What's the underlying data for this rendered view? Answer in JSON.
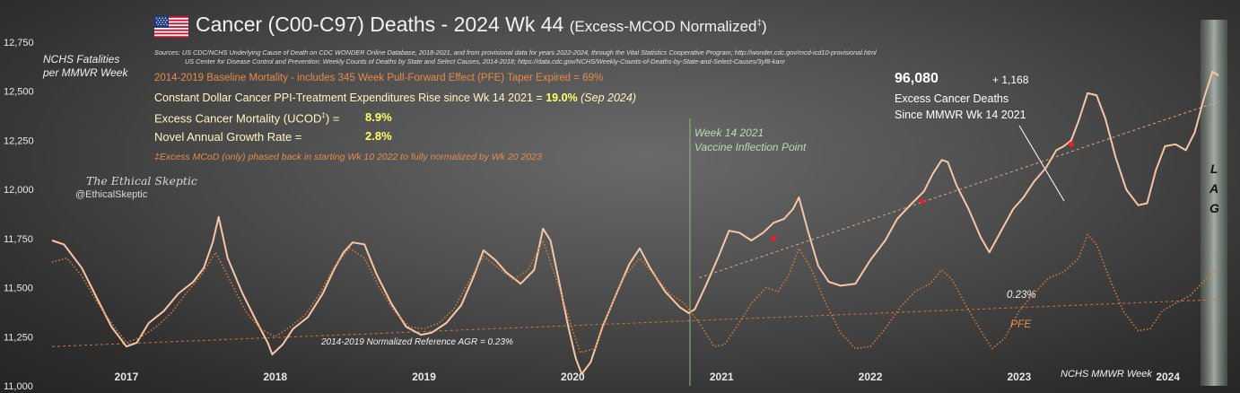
{
  "chart_data": {
    "type": "line",
    "title": "Cancer (C00-C97) Deaths - 2024 Wk 44",
    "title_suffix": "(Excess-MCOD  Normalized",
    "title_dagger": "‡",
    "title_close": ")",
    "sources_line1": "Sources:  US CDC/NCHS Underlying  Cause of Death on CDC WONDER Online Database, 2018-2021, and from provisional data for years 2022-2024, through the Vital Statistics Cooperative Program; http://wonder.cdc.gov/mcd-icd10-provisional.html",
    "sources_line2": "US Center for Disease Control and Prevention: Weekly  Counts of Deaths by State and Select Causes, 2014-2018; https://data.cdc.gov/NCHS/Weekly-Counts-of-Deaths-by-State-and-Select-Causes/3yf8-kanr",
    "ylabel_line1": "NCHS Fatalities",
    "ylabel_line2": "per MMWR Week",
    "xlabel": "NCHS MMWR Week",
    "ylim": [
      11000,
      12750
    ],
    "y_ticks": [
      "11,000",
      "11,250",
      "11,500",
      "11,750",
      "12,000",
      "12,250",
      "12,500",
      "12,750"
    ],
    "y_tick_values": [
      11000,
      11250,
      11500,
      11750,
      12000,
      12250,
      12500,
      12750
    ],
    "x_tick_labels": [
      "2017",
      "2018",
      "2019",
      "2020",
      "2021",
      "2022",
      "2023",
      "2024"
    ],
    "grid": false,
    "series": [
      {
        "name": "",
        "style": "solid",
        "color": "#f6c7a6",
        "points": [
          [
            2016.5,
            11740
          ],
          [
            2016.58,
            11720
          ],
          [
            2016.7,
            11600
          ],
          [
            2016.8,
            11450
          ],
          [
            2016.9,
            11300
          ],
          [
            2017.0,
            11200
          ],
          [
            2017.07,
            11220
          ],
          [
            2017.15,
            11320
          ],
          [
            2017.25,
            11380
          ],
          [
            2017.35,
            11470
          ],
          [
            2017.45,
            11530
          ],
          [
            2017.52,
            11600
          ],
          [
            2017.58,
            11730
          ],
          [
            2017.62,
            11860
          ],
          [
            2017.68,
            11650
          ],
          [
            2017.78,
            11470
          ],
          [
            2017.88,
            11320
          ],
          [
            2017.95,
            11220
          ],
          [
            2017.98,
            11160
          ],
          [
            2018.05,
            11210
          ],
          [
            2018.12,
            11290
          ],
          [
            2018.22,
            11350
          ],
          [
            2018.32,
            11470
          ],
          [
            2018.4,
            11600
          ],
          [
            2018.46,
            11680
          ],
          [
            2018.52,
            11730
          ],
          [
            2018.6,
            11720
          ],
          [
            2018.68,
            11570
          ],
          [
            2018.78,
            11420
          ],
          [
            2018.88,
            11300
          ],
          [
            2018.98,
            11260
          ],
          [
            2019.05,
            11270
          ],
          [
            2019.15,
            11320
          ],
          [
            2019.25,
            11410
          ],
          [
            2019.33,
            11550
          ],
          [
            2019.4,
            11690
          ],
          [
            2019.48,
            11640
          ],
          [
            2019.55,
            11580
          ],
          [
            2019.65,
            11520
          ],
          [
            2019.74,
            11590
          ],
          [
            2019.8,
            11800
          ],
          [
            2019.85,
            11740
          ],
          [
            2019.9,
            11560
          ],
          [
            2019.97,
            11300
          ],
          [
            2020.02,
            11140
          ],
          [
            2020.06,
            11060
          ],
          [
            2020.12,
            11120
          ],
          [
            2020.2,
            11300
          ],
          [
            2020.3,
            11480
          ],
          [
            2020.38,
            11620
          ],
          [
            2020.45,
            11700
          ],
          [
            2020.52,
            11600
          ],
          [
            2020.62,
            11480
          ],
          [
            2020.72,
            11400
          ],
          [
            2020.78,
            11370
          ],
          [
            2020.82,
            11390
          ],
          [
            2020.9,
            11520
          ],
          [
            2020.98,
            11660
          ],
          [
            2021.05,
            11790
          ],
          [
            2021.12,
            11780
          ],
          [
            2021.2,
            11740
          ],
          [
            2021.28,
            11780
          ],
          [
            2021.35,
            11830
          ],
          [
            2021.42,
            11850
          ],
          [
            2021.48,
            11900
          ],
          [
            2021.52,
            11960
          ],
          [
            2021.58,
            11790
          ],
          [
            2021.65,
            11610
          ],
          [
            2021.72,
            11530
          ],
          [
            2021.8,
            11510
          ],
          [
            2021.9,
            11520
          ],
          [
            2022.0,
            11640
          ],
          [
            2022.1,
            11740
          ],
          [
            2022.18,
            11850
          ],
          [
            2022.28,
            11930
          ],
          [
            2022.36,
            11990
          ],
          [
            2022.42,
            12080
          ],
          [
            2022.48,
            12150
          ],
          [
            2022.52,
            12140
          ],
          [
            2022.58,
            12020
          ],
          [
            2022.66,
            11900
          ],
          [
            2022.74,
            11760
          ],
          [
            2022.8,
            11680
          ],
          [
            2022.88,
            11790
          ],
          [
            2022.96,
            11900
          ],
          [
            2023.03,
            11960
          ],
          [
            2023.1,
            12040
          ],
          [
            2023.18,
            12110
          ],
          [
            2023.25,
            12200
          ],
          [
            2023.3,
            12220
          ],
          [
            2023.35,
            12250
          ],
          [
            2023.4,
            12350
          ],
          [
            2023.46,
            12490
          ],
          [
            2023.52,
            12480
          ],
          [
            2023.58,
            12360
          ],
          [
            2023.65,
            12160
          ],
          [
            2023.72,
            12000
          ],
          [
            2023.8,
            11920
          ],
          [
            2023.86,
            11930
          ],
          [
            2023.92,
            12100
          ],
          [
            2023.98,
            12220
          ],
          [
            2024.05,
            12230
          ],
          [
            2024.12,
            12200
          ],
          [
            2024.18,
            12290
          ],
          [
            2024.24,
            12460
          ],
          [
            2024.3,
            12600
          ],
          [
            2024.34,
            12580
          ]
        ]
      },
      {
        "name": "",
        "style": "dotted",
        "color": "#d07a3a",
        "points": [
          [
            2016.5,
            11630
          ],
          [
            2016.6,
            11650
          ],
          [
            2016.7,
            11560
          ],
          [
            2016.8,
            11430
          ],
          [
            2016.9,
            11320
          ],
          [
            2017.0,
            11220
          ],
          [
            2017.1,
            11250
          ],
          [
            2017.2,
            11300
          ],
          [
            2017.3,
            11370
          ],
          [
            2017.4,
            11470
          ],
          [
            2017.5,
            11560
          ],
          [
            2017.6,
            11680
          ],
          [
            2017.7,
            11530
          ],
          [
            2017.8,
            11380
          ],
          [
            2017.9,
            11290
          ],
          [
            2018.0,
            11250
          ],
          [
            2018.1,
            11300
          ],
          [
            2018.2,
            11360
          ],
          [
            2018.3,
            11470
          ],
          [
            2018.4,
            11610
          ],
          [
            2018.5,
            11700
          ],
          [
            2018.6,
            11650
          ],
          [
            2018.7,
            11500
          ],
          [
            2018.8,
            11380
          ],
          [
            2018.9,
            11300
          ],
          [
            2019.0,
            11290
          ],
          [
            2019.1,
            11320
          ],
          [
            2019.2,
            11390
          ],
          [
            2019.3,
            11530
          ],
          [
            2019.4,
            11660
          ],
          [
            2019.5,
            11600
          ],
          [
            2019.6,
            11540
          ],
          [
            2019.7,
            11590
          ],
          [
            2019.8,
            11740
          ],
          [
            2019.9,
            11520
          ],
          [
            2020.0,
            11280
          ],
          [
            2020.05,
            11170
          ],
          [
            2020.15,
            11190
          ],
          [
            2020.25,
            11390
          ],
          [
            2020.35,
            11560
          ],
          [
            2020.45,
            11650
          ],
          [
            2020.55,
            11560
          ],
          [
            2020.65,
            11470
          ],
          [
            2020.75,
            11420
          ],
          [
            2020.85,
            11320
          ],
          [
            2020.95,
            11200
          ],
          [
            2021.02,
            11210
          ],
          [
            2021.1,
            11300
          ],
          [
            2021.2,
            11420
          ],
          [
            2021.3,
            11500
          ],
          [
            2021.38,
            11480
          ],
          [
            2021.45,
            11560
          ],
          [
            2021.52,
            11700
          ],
          [
            2021.6,
            11600
          ],
          [
            2021.7,
            11420
          ],
          [
            2021.8,
            11270
          ],
          [
            2021.9,
            11190
          ],
          [
            2022.0,
            11200
          ],
          [
            2022.1,
            11290
          ],
          [
            2022.2,
            11400
          ],
          [
            2022.3,
            11480
          ],
          [
            2022.4,
            11520
          ],
          [
            2022.48,
            11590
          ],
          [
            2022.55,
            11540
          ],
          [
            2022.65,
            11400
          ],
          [
            2022.75,
            11270
          ],
          [
            2022.82,
            11190
          ],
          [
            2022.9,
            11240
          ],
          [
            2023.0,
            11380
          ],
          [
            2023.1,
            11470
          ],
          [
            2023.2,
            11550
          ],
          [
            2023.3,
            11580
          ],
          [
            2023.4,
            11650
          ],
          [
            2023.46,
            11770
          ],
          [
            2023.52,
            11720
          ],
          [
            2023.6,
            11560
          ],
          [
            2023.7,
            11380
          ],
          [
            2023.8,
            11280
          ],
          [
            2023.88,
            11290
          ],
          [
            2023.96,
            11380
          ],
          [
            2024.05,
            11420
          ],
          [
            2024.15,
            11460
          ],
          [
            2024.25,
            11540
          ],
          [
            2024.33,
            11600
          ]
        ]
      }
    ],
    "reference_lines": [
      {
        "from": [
          2016.5,
          11200
        ],
        "to": [
          2024.35,
          11440
        ],
        "color": "#c9763c"
      },
      {
        "from": [
          2020.85,
          11550
        ],
        "to": [
          2024.35,
          12450
        ],
        "color": "#e0a882"
      }
    ],
    "markers": [
      [
        2021.35,
        11750
      ],
      [
        2022.35,
        11940
      ],
      [
        2023.35,
        12230
      ]
    ],
    "annotations": {
      "baseline": "2014-2019 Baseline Mortality - includes 345 Week Pull-Forward Effect (PFE) Taper Expired =   69%",
      "ppi_text": "Constant Dollar Cancer PPI-Treatment Expenditures Rise since Wk 14 2021  = ",
      "ppi_value": "19.0%",
      "ppi_date": "(Sep 2024)",
      "excess_label": "Excess Cancer Mortality (UCOD",
      "excess_dagger": "‡",
      "excess_close": ") =",
      "excess_value": "8.9%",
      "growth_label": "Novel Annual  Growth Rate  =",
      "growth_value": "2.8%",
      "footnote": "‡Excess  MCoD (only) phased back in starting  Wk 10 2022 to fully normalized  by Wk 20 2023",
      "brand": "The Ethical Skeptic",
      "handle": "@EthicalSkeptic",
      "vaccine_line1": "Week 14 2021",
      "vaccine_line2": "Vaccine Inflection Point",
      "excess_count": "96,080",
      "excess_delta": "+  1,168",
      "excess_desc1": "Excess Cancer Deaths",
      "excess_desc2": "Since MMWR Wk 14 2021",
      "pct": "0.23%",
      "pfe": "PFE",
      "ref_agr": "2014-2019 Normalized Reference AGR = 0.23%",
      "lag1": "L",
      "lag2": "A",
      "lag3": "G"
    }
  },
  "colors": {
    "main_line": "#f6c7a6",
    "baseline_line": "#d07a3a",
    "highlight": "#ffff66",
    "orange_text": "#e88a4a",
    "title": "#f2f2f2"
  }
}
